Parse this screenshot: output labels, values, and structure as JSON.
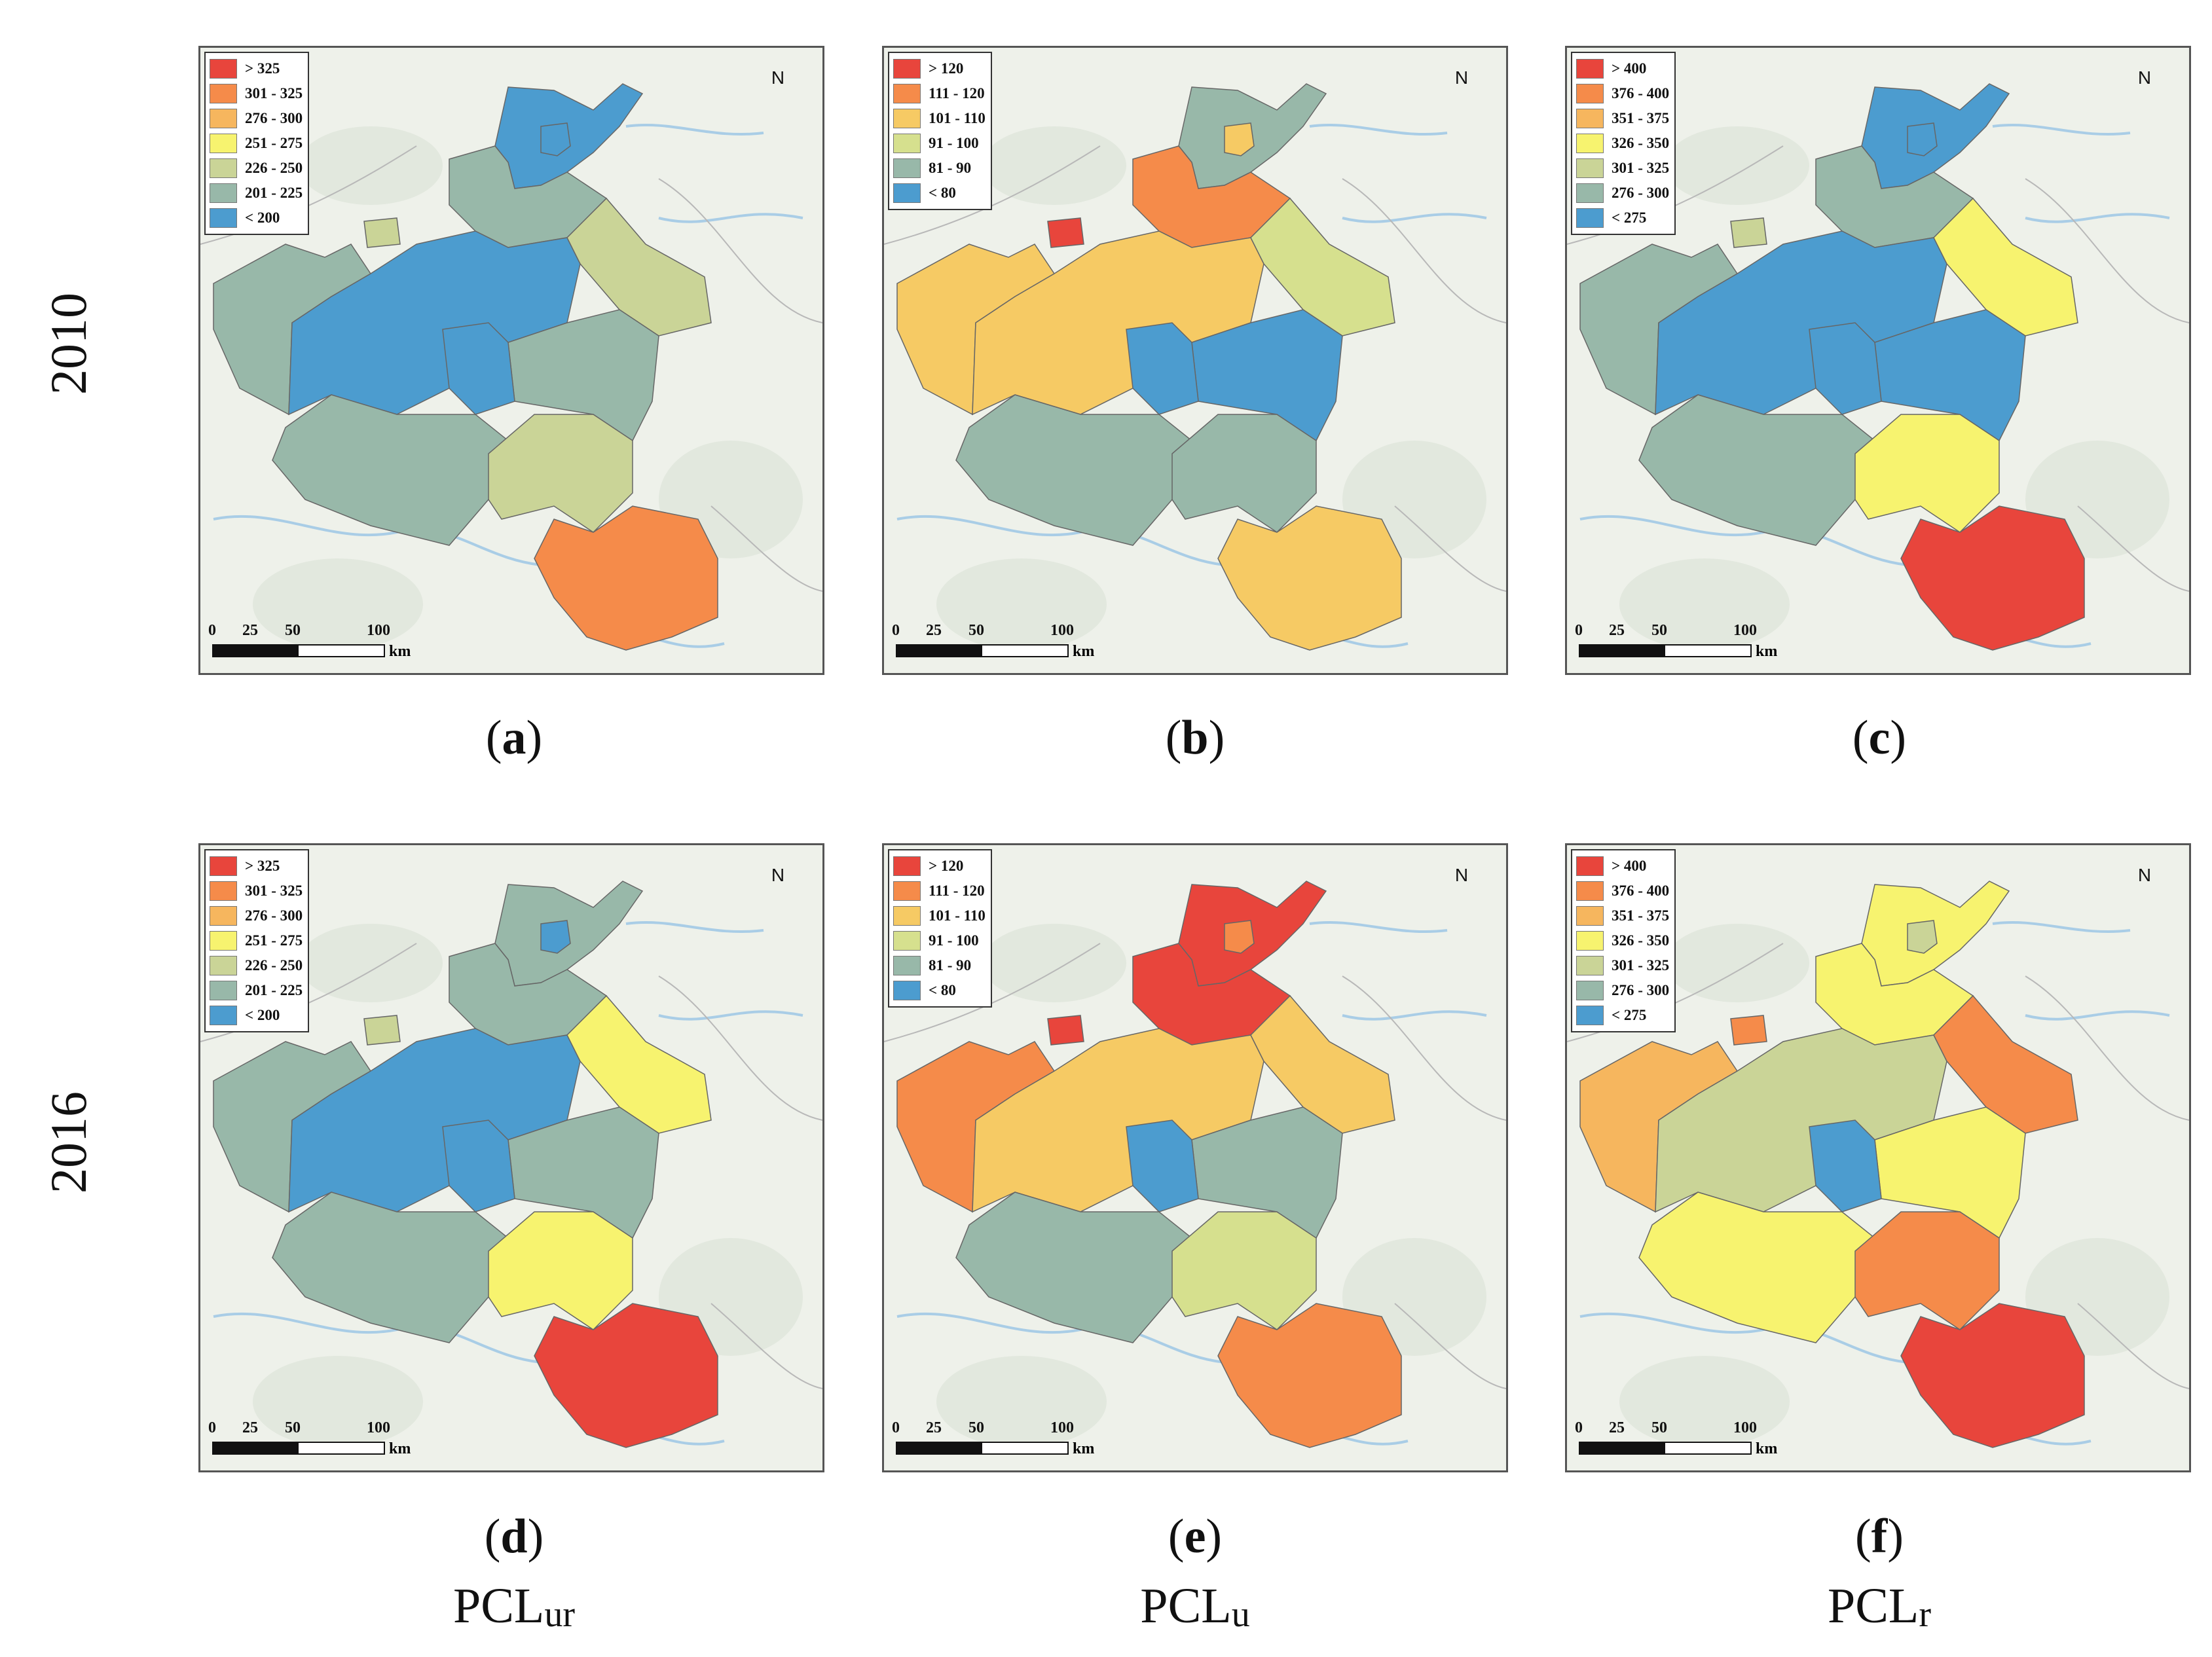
{
  "years": {
    "top": "2010",
    "bottom": "2016"
  },
  "colors": {
    "c7": "#e8453c",
    "c6": "#f58b4a",
    "c5": "#f6b65e",
    "c4": "#f7f36f",
    "c3": "#cad497",
    "c2": "#98b8a9",
    "c1": "#4c9ccf",
    "background": "#eef1ea",
    "outline": "#666666"
  },
  "legends": {
    "ur": [
      {
        "label": "> 325",
        "color": "#e8453c"
      },
      {
        "label": "301 - 325",
        "color": "#f58b4a"
      },
      {
        "label": "276 - 300",
        "color": "#f6b65e"
      },
      {
        "label": "251 - 275",
        "color": "#f7f36f"
      },
      {
        "label": "226 - 250",
        "color": "#cad497"
      },
      {
        "label": "201 - 225",
        "color": "#98b8a9"
      },
      {
        "label": "< 200",
        "color": "#4c9ccf"
      }
    ],
    "u": [
      {
        "label": "> 120",
        "color": "#e8453c"
      },
      {
        "label": "111 - 120",
        "color": "#f58b4a"
      },
      {
        "label": "101 - 110",
        "color": "#f6ca64"
      },
      {
        "label": "91 - 100",
        "color": "#d6e08e"
      },
      {
        "label": "81 - 90",
        "color": "#98b8a9"
      },
      {
        "label": "< 80",
        "color": "#4c9ccf"
      }
    ],
    "r": [
      {
        "label": "> 400",
        "color": "#e8453c"
      },
      {
        "label": "376 - 400",
        "color": "#f58b4a"
      },
      {
        "label": "351 - 375",
        "color": "#f6b65e"
      },
      {
        "label": "326 - 350",
        "color": "#f7f36f"
      },
      {
        "label": "301 - 325",
        "color": "#cad497"
      },
      {
        "label": "276 - 300",
        "color": "#98b8a9"
      },
      {
        "label": "< 275",
        "color": "#4c9ccf"
      }
    ]
  },
  "scale": {
    "ticks": [
      "0",
      "25",
      "50",
      "100"
    ],
    "unit": "km"
  },
  "north": "N",
  "panels": [
    {
      "caption": "a",
      "legend": "ur",
      "regions": {
        "north": "#4c9ccf",
        "northMid": "#98b8a9",
        "jiaozuo": "#cad497",
        "central": "#4c9ccf",
        "west": "#98b8a9",
        "east": "#cad497",
        "eastMid": "#98b8a9",
        "southwest": "#98b8a9",
        "southMid": "#cad497",
        "southeast": "#f58b4a",
        "zhengzhou": "#4c9ccf",
        "smallN": "#4c9ccf"
      }
    },
    {
      "caption": "b",
      "legend": "u",
      "regions": {
        "north": "#98b8a9",
        "northMid": "#f58b4a",
        "jiaozuo": "#e8453c",
        "central": "#f6ca64",
        "west": "#f6ca64",
        "east": "#d6e08e",
        "eastMid": "#4c9ccf",
        "southwest": "#98b8a9",
        "southMid": "#98b8a9",
        "southeast": "#f6ca64",
        "zhengzhou": "#4c9ccf",
        "smallN": "#f6ca64"
      }
    },
    {
      "caption": "c",
      "legend": "r",
      "regions": {
        "north": "#4c9ccf",
        "northMid": "#98b8a9",
        "jiaozuo": "#cad497",
        "central": "#4c9ccf",
        "west": "#98b8a9",
        "east": "#f7f36f",
        "eastMid": "#4c9ccf",
        "southwest": "#98b8a9",
        "southMid": "#f7f36f",
        "southeast": "#e8453c",
        "zhengzhou": "#4c9ccf",
        "smallN": "#4c9ccf"
      }
    },
    {
      "caption": "d",
      "legend": "ur",
      "regions": {
        "north": "#98b8a9",
        "northMid": "#98b8a9",
        "jiaozuo": "#cad497",
        "central": "#4c9ccf",
        "west": "#98b8a9",
        "east": "#f7f36f",
        "eastMid": "#98b8a9",
        "southwest": "#98b8a9",
        "southMid": "#f7f36f",
        "southeast": "#e8453c",
        "zhengzhou": "#4c9ccf",
        "smallN": "#4c9ccf"
      }
    },
    {
      "caption": "e",
      "legend": "u",
      "regions": {
        "north": "#e8453c",
        "northMid": "#e8453c",
        "jiaozuo": "#e8453c",
        "central": "#f6ca64",
        "west": "#f58b4a",
        "east": "#f6ca64",
        "eastMid": "#98b8a9",
        "southwest": "#98b8a9",
        "southMid": "#d6e08e",
        "southeast": "#f58b4a",
        "zhengzhou": "#4c9ccf",
        "smallN": "#f58b4a"
      }
    },
    {
      "caption": "f",
      "legend": "r",
      "regions": {
        "north": "#f7f36f",
        "northMid": "#f7f36f",
        "jiaozuo": "#f58b4a",
        "central": "#cad497",
        "west": "#f6b65e",
        "east": "#f58b4a",
        "eastMid": "#f7f36f",
        "southwest": "#f7f36f",
        "southMid": "#f58b4a",
        "southeast": "#e8453c",
        "zhengzhou": "#4c9ccf",
        "smallN": "#cad497"
      }
    }
  ],
  "footers": [
    {
      "main": "PCL",
      "sub": "ur"
    },
    {
      "main": "PCL",
      "sub": "u"
    },
    {
      "main": "PCL",
      "sub": "r"
    }
  ]
}
